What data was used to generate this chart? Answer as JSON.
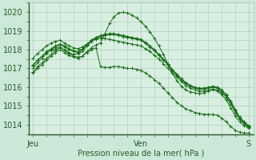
{
  "title": "Pression niveau de la mer( hPa )",
  "xlabels": [
    "Jeu",
    "Ven",
    "S"
  ],
  "xtick_positions": [
    0,
    48,
    96
  ],
  "ylim": [
    1013.5,
    1020.5
  ],
  "yticks": [
    1014,
    1015,
    1016,
    1017,
    1018,
    1019,
    1020
  ],
  "xlim": [
    -2,
    98
  ],
  "bg_color": "#cce8d8",
  "plot_bg": "#d8eee0",
  "grid_color": "#aacaba",
  "line_color": "#1a6e1a",
  "series": [
    [
      [
        0,
        1016.8
      ],
      [
        2,
        1017.1
      ],
      [
        4,
        1017.3
      ],
      [
        6,
        1017.55
      ],
      [
        8,
        1017.75
      ],
      [
        10,
        1017.95
      ],
      [
        12,
        1018.1
      ],
      [
        14,
        1018.0
      ],
      [
        16,
        1017.85
      ],
      [
        18,
        1017.75
      ],
      [
        20,
        1017.8
      ],
      [
        22,
        1017.9
      ],
      [
        24,
        1018.2
      ],
      [
        26,
        1018.45
      ],
      [
        28,
        1018.6
      ],
      [
        30,
        1018.7
      ],
      [
        32,
        1018.75
      ],
      [
        34,
        1018.8
      ],
      [
        36,
        1018.8
      ],
      [
        38,
        1018.75
      ],
      [
        40,
        1018.7
      ],
      [
        42,
        1018.65
      ],
      [
        44,
        1018.6
      ],
      [
        46,
        1018.55
      ],
      [
        48,
        1018.5
      ],
      [
        50,
        1018.35
      ],
      [
        52,
        1018.15
      ],
      [
        54,
        1017.95
      ],
      [
        56,
        1017.7
      ],
      [
        58,
        1017.45
      ],
      [
        60,
        1017.2
      ],
      [
        62,
        1016.9
      ],
      [
        64,
        1016.65
      ],
      [
        66,
        1016.4
      ],
      [
        68,
        1016.2
      ],
      [
        70,
        1016.05
      ],
      [
        72,
        1015.95
      ],
      [
        74,
        1015.9
      ],
      [
        76,
        1015.9
      ],
      [
        78,
        1015.95
      ],
      [
        80,
        1016.0
      ],
      [
        82,
        1015.95
      ],
      [
        84,
        1015.8
      ],
      [
        86,
        1015.55
      ],
      [
        88,
        1015.2
      ],
      [
        90,
        1014.75
      ],
      [
        92,
        1014.35
      ],
      [
        94,
        1014.1
      ],
      [
        96,
        1013.9
      ]
    ],
    [
      [
        0,
        1017.0
      ],
      [
        2,
        1017.3
      ],
      [
        4,
        1017.55
      ],
      [
        6,
        1017.8
      ],
      [
        8,
        1018.0
      ],
      [
        10,
        1018.15
      ],
      [
        12,
        1018.25
      ],
      [
        14,
        1018.15
      ],
      [
        16,
        1018.0
      ],
      [
        18,
        1017.9
      ],
      [
        20,
        1017.85
      ],
      [
        22,
        1018.0
      ],
      [
        24,
        1018.25
      ],
      [
        26,
        1018.5
      ],
      [
        28,
        1018.65
      ],
      [
        30,
        1018.75
      ],
      [
        32,
        1018.8
      ],
      [
        34,
        1018.85
      ],
      [
        36,
        1018.85
      ],
      [
        38,
        1018.8
      ],
      [
        40,
        1018.75
      ],
      [
        42,
        1018.7
      ],
      [
        44,
        1018.65
      ],
      [
        46,
        1018.6
      ],
      [
        48,
        1018.55
      ],
      [
        50,
        1018.4
      ],
      [
        52,
        1018.2
      ],
      [
        54,
        1018.0
      ],
      [
        56,
        1017.75
      ],
      [
        58,
        1017.5
      ],
      [
        60,
        1017.25
      ],
      [
        62,
        1016.95
      ],
      [
        64,
        1016.7
      ],
      [
        66,
        1016.45
      ],
      [
        68,
        1016.25
      ],
      [
        70,
        1016.1
      ],
      [
        72,
        1016.0
      ],
      [
        74,
        1015.95
      ],
      [
        76,
        1015.95
      ],
      [
        78,
        1016.0
      ],
      [
        80,
        1016.05
      ],
      [
        82,
        1016.0
      ],
      [
        84,
        1015.85
      ],
      [
        86,
        1015.6
      ],
      [
        88,
        1015.25
      ],
      [
        90,
        1014.8
      ],
      [
        92,
        1014.4
      ],
      [
        94,
        1014.15
      ],
      [
        96,
        1013.95
      ]
    ],
    [
      [
        0,
        1017.15
      ],
      [
        2,
        1017.45
      ],
      [
        4,
        1017.65
      ],
      [
        6,
        1017.9
      ],
      [
        8,
        1018.05
      ],
      [
        10,
        1018.2
      ],
      [
        12,
        1018.3
      ],
      [
        14,
        1018.2
      ],
      [
        16,
        1018.05
      ],
      [
        18,
        1017.95
      ],
      [
        20,
        1017.9
      ],
      [
        22,
        1018.05
      ],
      [
        24,
        1018.3
      ],
      [
        26,
        1018.5
      ],
      [
        28,
        1018.65
      ],
      [
        30,
        1018.75
      ],
      [
        32,
        1018.8
      ],
      [
        34,
        1018.85
      ],
      [
        36,
        1018.85
      ],
      [
        38,
        1018.8
      ],
      [
        40,
        1018.75
      ],
      [
        42,
        1018.7
      ],
      [
        44,
        1018.65
      ],
      [
        46,
        1018.6
      ],
      [
        48,
        1018.5
      ],
      [
        50,
        1018.35
      ],
      [
        52,
        1018.15
      ],
      [
        54,
        1017.95
      ],
      [
        56,
        1017.7
      ],
      [
        58,
        1017.45
      ],
      [
        60,
        1017.2
      ],
      [
        62,
        1016.9
      ],
      [
        64,
        1016.65
      ],
      [
        66,
        1016.4
      ],
      [
        68,
        1016.2
      ],
      [
        70,
        1016.05
      ],
      [
        72,
        1015.95
      ],
      [
        74,
        1015.9
      ],
      [
        76,
        1015.9
      ],
      [
        78,
        1015.95
      ],
      [
        80,
        1016.0
      ],
      [
        82,
        1015.95
      ],
      [
        84,
        1015.8
      ],
      [
        86,
        1015.55
      ],
      [
        88,
        1015.2
      ],
      [
        90,
        1014.75
      ],
      [
        92,
        1014.35
      ],
      [
        94,
        1014.1
      ],
      [
        96,
        1013.9
      ]
    ],
    [
      [
        0,
        1017.55
      ],
      [
        2,
        1017.8
      ],
      [
        4,
        1018.0
      ],
      [
        6,
        1018.2
      ],
      [
        8,
        1018.35
      ],
      [
        10,
        1018.45
      ],
      [
        12,
        1018.5
      ],
      [
        14,
        1018.35
      ],
      [
        16,
        1018.2
      ],
      [
        18,
        1018.1
      ],
      [
        20,
        1018.05
      ],
      [
        22,
        1018.15
      ],
      [
        24,
        1018.3
      ],
      [
        26,
        1018.45
      ],
      [
        28,
        1018.55
      ],
      [
        30,
        1018.6
      ],
      [
        32,
        1018.6
      ],
      [
        34,
        1018.55
      ],
      [
        36,
        1018.5
      ],
      [
        38,
        1018.45
      ],
      [
        40,
        1018.4
      ],
      [
        42,
        1018.35
      ],
      [
        44,
        1018.3
      ],
      [
        46,
        1018.25
      ],
      [
        48,
        1018.2
      ],
      [
        50,
        1018.05
      ],
      [
        52,
        1017.9
      ],
      [
        54,
        1017.7
      ],
      [
        56,
        1017.5
      ],
      [
        58,
        1017.25
      ],
      [
        60,
        1017.0
      ],
      [
        62,
        1016.75
      ],
      [
        64,
        1016.55
      ],
      [
        66,
        1016.3
      ],
      [
        68,
        1016.1
      ],
      [
        70,
        1015.95
      ],
      [
        72,
        1015.85
      ],
      [
        74,
        1015.8
      ],
      [
        76,
        1015.8
      ],
      [
        78,
        1015.85
      ],
      [
        80,
        1015.9
      ],
      [
        82,
        1015.85
      ],
      [
        84,
        1015.7
      ],
      [
        86,
        1015.45
      ],
      [
        88,
        1015.1
      ],
      [
        90,
        1014.65
      ],
      [
        92,
        1014.3
      ],
      [
        94,
        1014.05
      ],
      [
        96,
        1013.85
      ]
    ],
    [
      [
        0,
        1016.75
      ],
      [
        2,
        1017.0
      ],
      [
        4,
        1017.2
      ],
      [
        6,
        1017.45
      ],
      [
        8,
        1017.65
      ],
      [
        10,
        1017.85
      ],
      [
        12,
        1018.0
      ],
      [
        14,
        1017.85
      ],
      [
        16,
        1017.7
      ],
      [
        18,
        1017.6
      ],
      [
        20,
        1017.55
      ],
      [
        22,
        1017.65
      ],
      [
        24,
        1017.9
      ],
      [
        26,
        1018.1
      ],
      [
        28,
        1018.25
      ],
      [
        30,
        1018.35
      ],
      [
        32,
        1018.85
      ],
      [
        34,
        1019.4
      ],
      [
        36,
        1019.75
      ],
      [
        38,
        1019.95
      ],
      [
        40,
        1020.0
      ],
      [
        42,
        1019.95
      ],
      [
        44,
        1019.85
      ],
      [
        46,
        1019.7
      ],
      [
        48,
        1019.5
      ],
      [
        50,
        1019.25
      ],
      [
        52,
        1018.95
      ],
      [
        54,
        1018.6
      ],
      [
        56,
        1018.2
      ],
      [
        58,
        1017.75
      ],
      [
        60,
        1017.25
      ],
      [
        62,
        1016.75
      ],
      [
        64,
        1016.35
      ],
      [
        66,
        1016.05
      ],
      [
        68,
        1015.85
      ],
      [
        70,
        1015.75
      ],
      [
        72,
        1015.7
      ],
      [
        74,
        1015.65
      ],
      [
        76,
        1015.7
      ],
      [
        78,
        1015.8
      ],
      [
        80,
        1015.85
      ],
      [
        82,
        1015.8
      ],
      [
        84,
        1015.6
      ],
      [
        86,
        1015.3
      ],
      [
        88,
        1014.9
      ],
      [
        90,
        1014.45
      ],
      [
        92,
        1014.15
      ],
      [
        94,
        1013.95
      ],
      [
        96,
        1013.8
      ]
    ],
    [
      [
        0,
        1017.2
      ],
      [
        2,
        1017.45
      ],
      [
        4,
        1017.65
      ],
      [
        6,
        1017.85
      ],
      [
        8,
        1017.95
      ],
      [
        10,
        1018.05
      ],
      [
        12,
        1018.15
      ],
      [
        14,
        1017.95
      ],
      [
        16,
        1017.8
      ],
      [
        18,
        1017.65
      ],
      [
        20,
        1017.6
      ],
      [
        22,
        1017.65
      ],
      [
        24,
        1017.85
      ],
      [
        26,
        1018.0
      ],
      [
        28,
        1018.1
      ],
      [
        30,
        1017.1
      ],
      [
        32,
        1017.05
      ],
      [
        34,
        1017.05
      ],
      [
        36,
        1017.1
      ],
      [
        38,
        1017.1
      ],
      [
        40,
        1017.05
      ],
      [
        42,
        1017.0
      ],
      [
        44,
        1017.0
      ],
      [
        46,
        1016.95
      ],
      [
        48,
        1016.9
      ],
      [
        50,
        1016.75
      ],
      [
        52,
        1016.6
      ],
      [
        54,
        1016.4
      ],
      [
        56,
        1016.2
      ],
      [
        58,
        1015.95
      ],
      [
        60,
        1015.7
      ],
      [
        62,
        1015.45
      ],
      [
        64,
        1015.2
      ],
      [
        66,
        1015.0
      ],
      [
        68,
        1014.85
      ],
      [
        70,
        1014.75
      ],
      [
        72,
        1014.65
      ],
      [
        74,
        1014.6
      ],
      [
        76,
        1014.55
      ],
      [
        78,
        1014.55
      ],
      [
        80,
        1014.55
      ],
      [
        82,
        1014.5
      ],
      [
        84,
        1014.35
      ],
      [
        86,
        1014.15
      ],
      [
        88,
        1013.9
      ],
      [
        90,
        1013.7
      ],
      [
        92,
        1013.6
      ],
      [
        94,
        1013.55
      ],
      [
        96,
        1013.55
      ]
    ]
  ]
}
